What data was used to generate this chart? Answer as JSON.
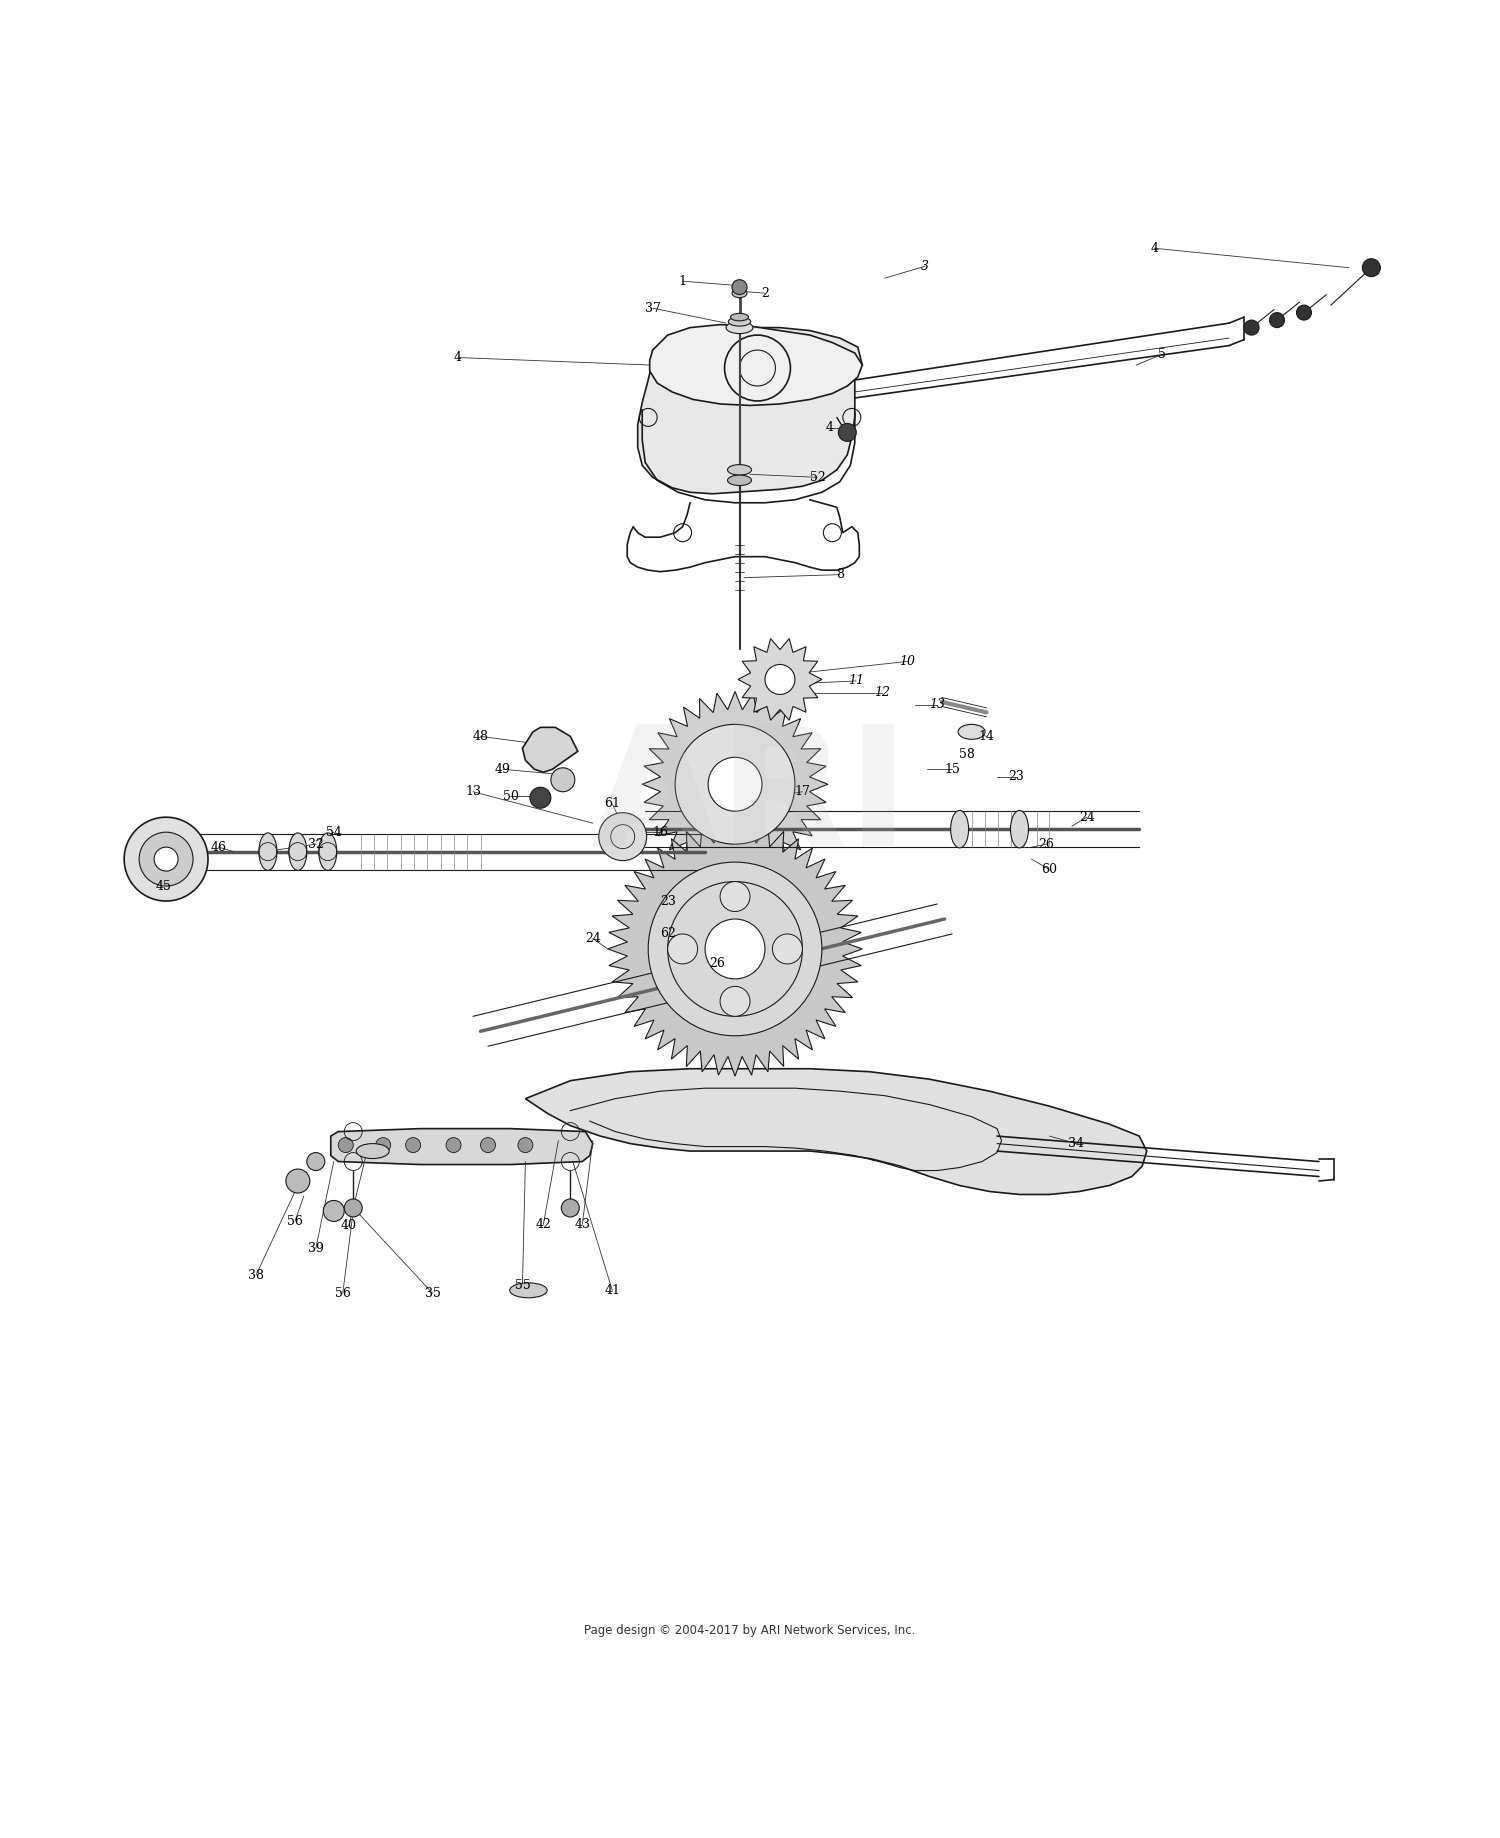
{
  "background_color": "#ffffff",
  "line_color": "#1a1a1a",
  "label_color": "#000000",
  "watermark_color": "#c0c0c0",
  "watermark_text": "ARI",
  "footer_text": "Page design © 2004-2017 by ARI Network Services, Inc.",
  "figure_width": 15.0,
  "figure_height": 18.38,
  "dpi": 100
}
